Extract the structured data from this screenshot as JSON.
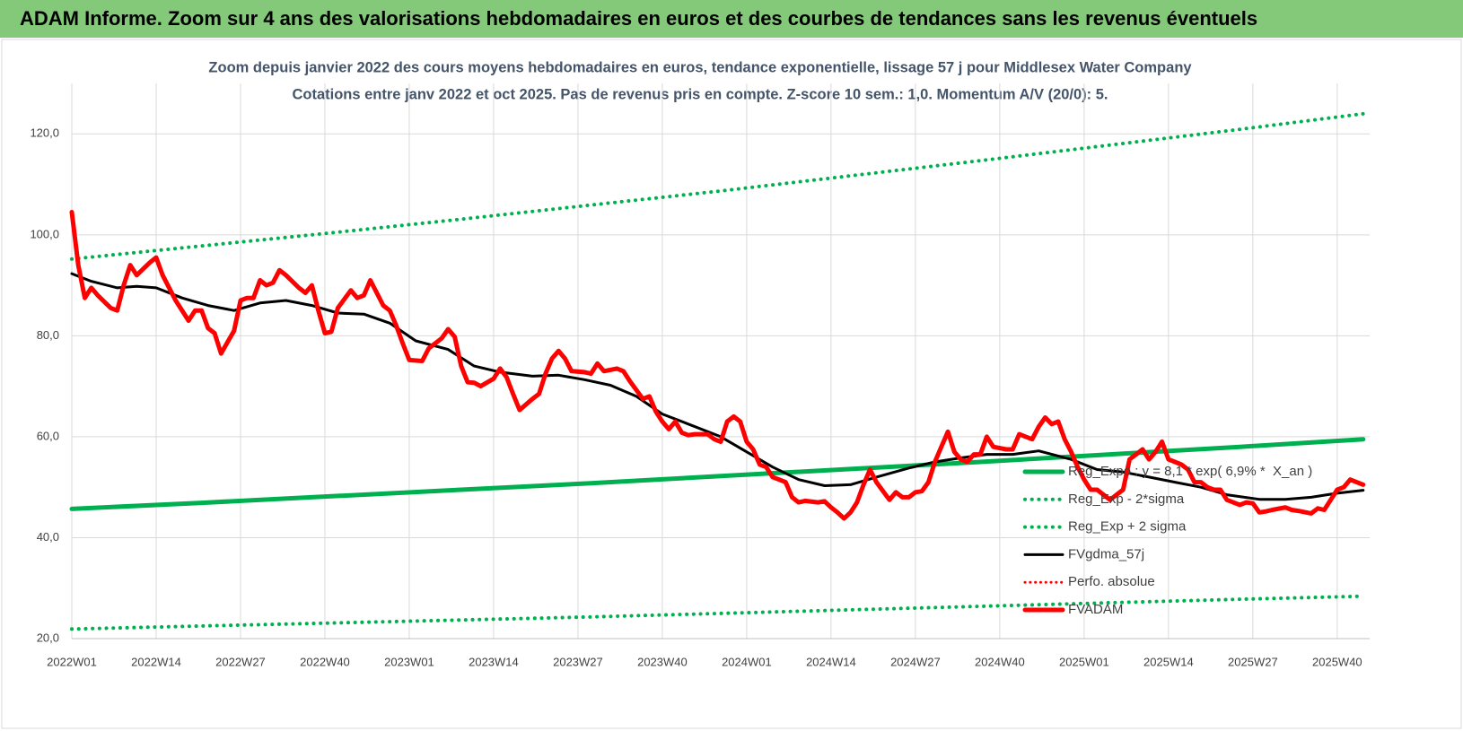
{
  "header": {
    "title": "ADAM Informe. Zoom sur 4 ans des valorisations hebdomadaires en euros et des courbes de tendances sans les revenus éventuels"
  },
  "chart_data": {
    "type": "line",
    "title": "Zoom depuis janvier 2022 des cours moyens hebdomadaires en euros, tendance exponentielle, lissage 57 j pour Middlesex Water Company",
    "subtitle": "Cotations entre janv 2022 et oct 2025. Pas de revenus pris en compte. Z-score 10 sem.: 1,0. Momentum A/V (20/0): 5.",
    "xlim": [
      0,
      200
    ],
    "xticks": [
      {
        "value": 0,
        "label": "2022W01"
      },
      {
        "value": 13,
        "label": "2022W14"
      },
      {
        "value": 26,
        "label": "2022W27"
      },
      {
        "value": 39,
        "label": "2022W40"
      },
      {
        "value": 52,
        "label": "2023W01"
      },
      {
        "value": 65,
        "label": "2023W14"
      },
      {
        "value": 78,
        "label": "2023W27"
      },
      {
        "value": 91,
        "label": "2023W40"
      },
      {
        "value": 104,
        "label": "2024W01"
      },
      {
        "value": 117,
        "label": "2024W14"
      },
      {
        "value": 130,
        "label": "2024W27"
      },
      {
        "value": 143,
        "label": "2024W40"
      },
      {
        "value": 156,
        "label": "2025W01"
      },
      {
        "value": 169,
        "label": "2025W14"
      },
      {
        "value": 182,
        "label": "2025W27"
      },
      {
        "value": 195,
        "label": "2025W40"
      }
    ],
    "ylim": [
      20,
      130
    ],
    "yticks": [
      {
        "value": 20,
        "label": "20,0"
      },
      {
        "value": 40,
        "label": "40,0"
      },
      {
        "value": 60,
        "label": "60,0"
      },
      {
        "value": 80,
        "label": "80,0"
      },
      {
        "value": 100,
        "label": "100,0"
      },
      {
        "value": 120,
        "label": "120,0"
      }
    ],
    "grid": true,
    "legend": "right",
    "series": [
      {
        "name": "Reg_Expo : y = 8,1 * exp( 6,9% *  X_an )",
        "color": "#00b050",
        "style": "solid",
        "width": 5,
        "x": [
          0,
          20,
          40,
          60,
          80,
          100,
          120,
          140,
          160,
          180,
          199
        ],
        "values": [
          45.7,
          46.9,
          48.2,
          49.5,
          50.8,
          52.2,
          53.6,
          55.0,
          56.5,
          58.0,
          59.5
        ]
      },
      {
        "name": "Reg_Exp - 2*sigma",
        "color": "#00b050",
        "style": "dotted",
        "width": 4,
        "x": [
          0,
          20,
          40,
          60,
          80,
          100,
          120,
          140,
          160,
          180,
          199
        ],
        "values": [
          21.9,
          22.5,
          23.1,
          23.7,
          24.3,
          25.0,
          25.7,
          26.4,
          27.1,
          27.8,
          28.4
        ]
      },
      {
        "name": "Reg_Exp + 2 sigma",
        "color": "#00b050",
        "style": "dotted",
        "width": 4,
        "x": [
          0,
          20,
          40,
          60,
          80,
          100,
          120,
          140,
          160,
          180,
          199
        ],
        "values": [
          95.2,
          97.8,
          100.4,
          103.1,
          105.9,
          108.7,
          111.7,
          114.7,
          117.8,
          120.9,
          124.0
        ]
      },
      {
        "name": "FVgdma_57j",
        "color": "#000000",
        "style": "solid",
        "width": 3,
        "x": [
          0,
          3,
          7,
          10,
          13,
          17,
          21,
          25,
          29,
          33,
          37,
          41,
          45,
          49,
          53,
          58,
          62,
          66,
          71,
          75,
          79,
          83,
          87,
          91,
          95,
          100,
          104,
          108,
          112,
          116,
          120,
          124,
          129,
          133,
          137,
          141,
          145,
          149,
          154,
          158,
          162,
          166,
          170,
          174,
          178,
          183,
          187,
          191,
          195,
          199
        ],
        "values": [
          92.3,
          90.8,
          89.5,
          89.8,
          89.5,
          87.5,
          86,
          85,
          86.5,
          87,
          86,
          84.5,
          84.3,
          82.5,
          79,
          77.3,
          74,
          72.8,
          72,
          72.2,
          71.3,
          70.2,
          68,
          64.5,
          62.5,
          60,
          57,
          54,
          51.5,
          50.3,
          50.5,
          52,
          53.8,
          55,
          55.8,
          56.5,
          56.5,
          57.2,
          55.5,
          53.5,
          53,
          52,
          51,
          50,
          48.5,
          47.6,
          47.6,
          48,
          48.8,
          49.4
        ]
      },
      {
        "name": "Perfo. absolue",
        "color": "#ff0000",
        "style": "dotted",
        "width": 3,
        "x": [],
        "values": []
      },
      {
        "name": "FVADAM",
        "color": "#ff0000",
        "style": "solid",
        "width": 5,
        "x": [
          0,
          1,
          2,
          3,
          4,
          6,
          7,
          8,
          9,
          10,
          12,
          13,
          14,
          16,
          18,
          19,
          20,
          21,
          22,
          23,
          25,
          26,
          27,
          28,
          29,
          30,
          31,
          32,
          33,
          35,
          36,
          37,
          38,
          39,
          40,
          41,
          43,
          44,
          45,
          46,
          48,
          49,
          50,
          51,
          52,
          54,
          55,
          57,
          58,
          59,
          60,
          61,
          62,
          63,
          65,
          66,
          67,
          68,
          69,
          71,
          72,
          73,
          74,
          75,
          76,
          77,
          79,
          80,
          81,
          82,
          84,
          85,
          86,
          88,
          89,
          90,
          91,
          92,
          93,
          94,
          95,
          96,
          98,
          99,
          100,
          101,
          102,
          103,
          104,
          105,
          106,
          107,
          108,
          109,
          110,
          111,
          112,
          113,
          115,
          116,
          117,
          118,
          119,
          120,
          121,
          122,
          123,
          124,
          126,
          127,
          128,
          129,
          130,
          131,
          132,
          133,
          134,
          135,
          136,
          137,
          138,
          139,
          140,
          141,
          142,
          144,
          145,
          146,
          147,
          148,
          149,
          150,
          151,
          152,
          153,
          154,
          155,
          156,
          157,
          158,
          159,
          160,
          161,
          162,
          163,
          165,
          166,
          167,
          168,
          169,
          170,
          171,
          172,
          173,
          174,
          175,
          176,
          177,
          178,
          180,
          181,
          182,
          183,
          184,
          185,
          187,
          188,
          189,
          191,
          192,
          193,
          194,
          195,
          196,
          197,
          198,
          199
        ],
        "values": [
          104.5,
          94,
          87.5,
          89.5,
          88,
          85.5,
          85,
          90,
          94,
          92,
          94.5,
          95.5,
          92,
          87,
          83,
          85,
          85,
          81.5,
          80.5,
          76.5,
          81,
          87,
          87.5,
          87.5,
          91,
          90,
          90.5,
          93,
          92,
          89.5,
          88.5,
          90,
          85,
          80.5,
          80.8,
          85.5,
          89,
          87.5,
          88,
          91,
          86,
          85,
          82,
          78.5,
          75.2,
          75,
          77.5,
          79.5,
          81.3,
          79.8,
          74,
          70.8,
          70.7,
          70,
          71.5,
          73.5,
          71.8,
          68.5,
          65.3,
          67.5,
          68.5,
          72.5,
          75.5,
          77,
          75.5,
          73,
          72.8,
          72.5,
          74.5,
          73,
          73.5,
          73,
          71,
          67.5,
          68,
          65,
          63,
          61.5,
          63,
          60.8,
          60.3,
          60.5,
          60.5,
          59.5,
          59,
          63,
          64,
          63,
          59,
          57.5,
          54.5,
          54,
          52,
          51.5,
          51,
          48,
          47,
          47.3,
          47,
          47.2,
          46,
          45,
          43.8,
          45,
          47,
          50.5,
          53.5,
          51,
          47.5,
          49,
          48,
          48,
          49,
          49.2,
          51,
          55,
          58,
          61,
          57,
          55.5,
          55,
          56.5,
          56.5,
          60,
          58,
          57.5,
          57.5,
          60.5,
          60,
          59.5,
          62,
          63.8,
          62.5,
          63,
          59.5,
          57,
          54,
          51.5,
          49.5,
          49.5,
          48.5,
          47.5,
          48.5,
          49.5,
          55.5,
          57.5,
          55.5,
          57,
          59,
          55.5,
          55,
          54.5,
          53.5,
          51,
          51,
          50,
          49.5,
          49.5,
          47.5,
          46.5,
          47,
          46.8,
          45,
          45.2,
          45.5,
          46,
          45.5,
          45.3,
          44.8,
          45.8,
          45.5,
          47.5,
          49.5,
          50,
          51.5,
          51,
          50.5
        ]
      }
    ]
  }
}
